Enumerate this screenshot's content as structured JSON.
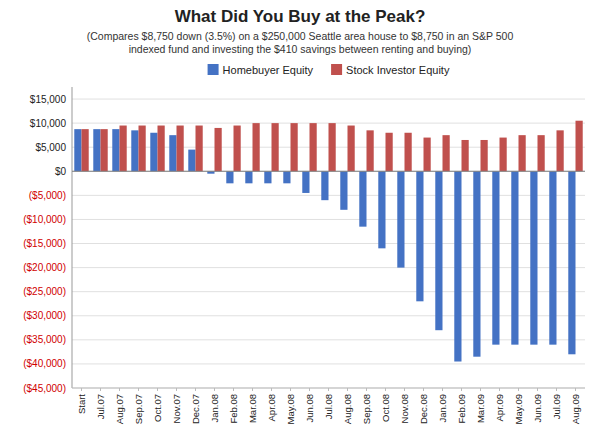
{
  "chart_data": {
    "type": "bar",
    "title": "What Did You Buy at the Peak?",
    "subtitle": "(Compares $8,750 down (3.5%) on a $250,000 Seattle area house to $8,750 in an S&P 500\nindexed fund and investing the $410 savings between renting and buying)",
    "categories": [
      "Start",
      "Jul.07",
      "Aug.07",
      "Sep.07",
      "Oct.07",
      "Nov.07",
      "Dec.07",
      "Jan.08",
      "Feb.08",
      "Mar.08",
      "Apr.08",
      "May.08",
      "Jun.08",
      "Jul.08",
      "Aug.08",
      "Sep.08",
      "Oct.08",
      "Nov.08",
      "Dec.08",
      "Jan.09",
      "Feb.09",
      "Mar.09",
      "Apr.09",
      "May.09",
      "Jun.09",
      "Jul.09",
      "Aug.09"
    ],
    "series": [
      {
        "name": "Homebuyer Equity",
        "color": "#4472C4",
        "values": [
          8750,
          8750,
          8750,
          8500,
          8000,
          7500,
          4500,
          -500,
          -2500,
          -2500,
          -2500,
          -2500,
          -4500,
          -6000,
          -8000,
          -11500,
          -16000,
          -20000,
          -27000,
          -33000,
          -39500,
          -38500,
          -36000,
          -36000,
          -36000,
          -36000,
          -38000
        ]
      },
      {
        "name": "Stock Investor Equity",
        "color": "#C0504D",
        "values": [
          8750,
          8750,
          9500,
          9500,
          9500,
          9500,
          9500,
          9000,
          9500,
          10000,
          10000,
          10000,
          10000,
          10000,
          9500,
          8500,
          8000,
          8000,
          7000,
          7500,
          6500,
          6500,
          7000,
          7500,
          7500,
          8500,
          10500
        ]
      }
    ],
    "ylim": [
      -45000,
      17500
    ],
    "yticks": [
      {
        "value": -45000,
        "label": "($45,000)"
      },
      {
        "value": -40000,
        "label": "($40,000)"
      },
      {
        "value": -35000,
        "label": "($35,000)"
      },
      {
        "value": -30000,
        "label": "($30,000)"
      },
      {
        "value": -25000,
        "label": "($25,000)"
      },
      {
        "value": -20000,
        "label": "($20,000)"
      },
      {
        "value": -15000,
        "label": "($15,000)"
      },
      {
        "value": -10000,
        "label": "($10,000)"
      },
      {
        "value": -5000,
        "label": "($5,000)"
      },
      {
        "value": 0,
        "label": "$0"
      },
      {
        "value": 5000,
        "label": "$5,000"
      },
      {
        "value": 10000,
        "label": "$10,000"
      },
      {
        "value": 15000,
        "label": "$15,000"
      }
    ],
    "grid": true,
    "legend": "top"
  }
}
